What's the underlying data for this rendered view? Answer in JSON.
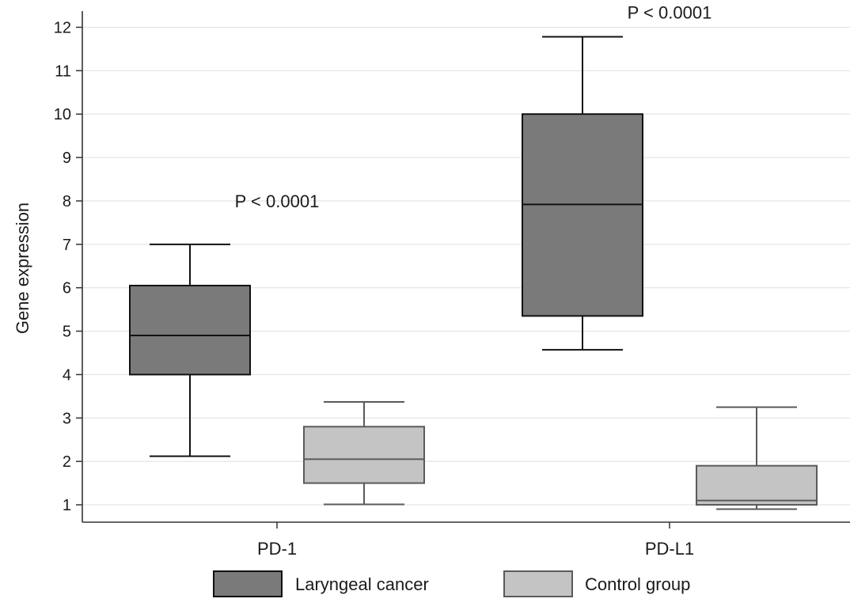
{
  "chart_data": {
    "type": "box",
    "title": "",
    "xlabel": "",
    "ylabel": "Gene expression",
    "ylim": [
      0.6,
      12.3
    ],
    "yticks": [
      1,
      2,
      3,
      4,
      5,
      6,
      7,
      8,
      9,
      10,
      11,
      12
    ],
    "grid": true,
    "legend_position": "bottom",
    "categories": [
      "PD-1",
      "PD-L1"
    ],
    "series": [
      {
        "name": "Laryngeal cancer",
        "color": "#7a7a7a",
        "boxes": [
          {
            "min": 2.12,
            "q1": 4.0,
            "median": 4.9,
            "q3": 6.05,
            "max": 7.0
          },
          {
            "min": 4.57,
            "q1": 5.35,
            "median": 7.92,
            "q3": 10.0,
            "max": 11.78
          }
        ]
      },
      {
        "name": "Control group",
        "color": "#c4c4c4",
        "boxes": [
          {
            "min": 1.01,
            "q1": 1.5,
            "median": 2.05,
            "q3": 2.8,
            "max": 3.37
          },
          {
            "min": 0.9,
            "q1": 1.0,
            "median": 1.1,
            "q3": 1.9,
            "max": 3.25
          }
        ]
      }
    ],
    "annotations": [
      {
        "text": "P < 0.0001",
        "category": "PD-1",
        "y": 8.0
      },
      {
        "text": "P < 0.0001",
        "category": "PD-L1",
        "y": 12.35
      }
    ]
  }
}
